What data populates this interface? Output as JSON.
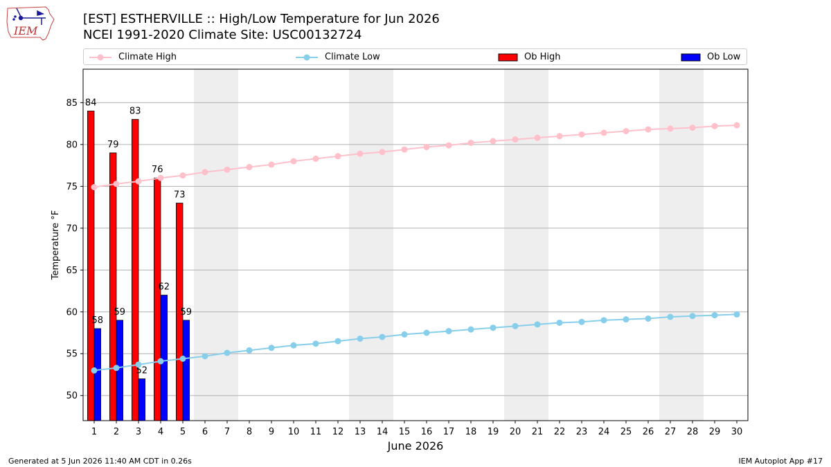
{
  "header": {
    "title_line1": "[EST] ESTHERVILLE :: High/Low Temperature for Jun 2026",
    "title_line2": "NCEI 1991-2020 Climate Site: USC00132724",
    "logo_text": "IEM"
  },
  "legend": {
    "items": [
      {
        "label": "Climate High",
        "color": "#ffc0cb",
        "kind": "line"
      },
      {
        "label": "Climate Low",
        "color": "#87ceeb",
        "kind": "line"
      },
      {
        "label": "Ob High",
        "color": "#ff0000",
        "kind": "bar"
      },
      {
        "label": "Ob Low",
        "color": "#0000ff",
        "kind": "bar"
      }
    ]
  },
  "footer": {
    "left": "Generated at 5 Jun 2026 11:40 AM CDT in 0.26s",
    "right": "IEM Autoplot App #17"
  },
  "chart_data": {
    "type": "bar",
    "xlabel": "June 2026",
    "ylabel": "Temperature °F",
    "ylim": [
      47,
      89
    ],
    "yticks": [
      50,
      55,
      60,
      65,
      70,
      75,
      80,
      85
    ],
    "grid": "horizontal",
    "days": [
      1,
      2,
      3,
      4,
      5,
      6,
      7,
      8,
      9,
      10,
      11,
      12,
      13,
      14,
      15,
      16,
      17,
      18,
      19,
      20,
      21,
      22,
      23,
      24,
      25,
      26,
      27,
      28,
      29,
      30
    ],
    "weekend_days": [
      6,
      7,
      13,
      14,
      20,
      21,
      27,
      28
    ],
    "ob_high": [
      84,
      79,
      83,
      76,
      73
    ],
    "ob_low": [
      58,
      59,
      52,
      62,
      59
    ],
    "climate_high": [
      74.9,
      75.3,
      75.6,
      76.0,
      76.3,
      76.7,
      77.0,
      77.3,
      77.6,
      78.0,
      78.3,
      78.6,
      78.9,
      79.1,
      79.4,
      79.7,
      79.9,
      80.2,
      80.4,
      80.6,
      80.8,
      81.0,
      81.2,
      81.4,
      81.6,
      81.8,
      81.9,
      82.0,
      82.2,
      82.3
    ],
    "climate_low": [
      53.0,
      53.3,
      53.7,
      54.1,
      54.4,
      54.7,
      55.1,
      55.4,
      55.7,
      56.0,
      56.2,
      56.5,
      56.8,
      57.0,
      57.3,
      57.5,
      57.7,
      57.9,
      58.1,
      58.3,
      58.5,
      58.7,
      58.8,
      59.0,
      59.1,
      59.2,
      59.4,
      59.5,
      59.6,
      59.7
    ],
    "colors": {
      "ob_high": "#ff0000",
      "ob_low": "#0000ff",
      "climate_high": "#ffc0cb",
      "climate_low": "#87ceeb",
      "weekend": "#eeeeee",
      "grid": "#b0b0b0"
    }
  }
}
